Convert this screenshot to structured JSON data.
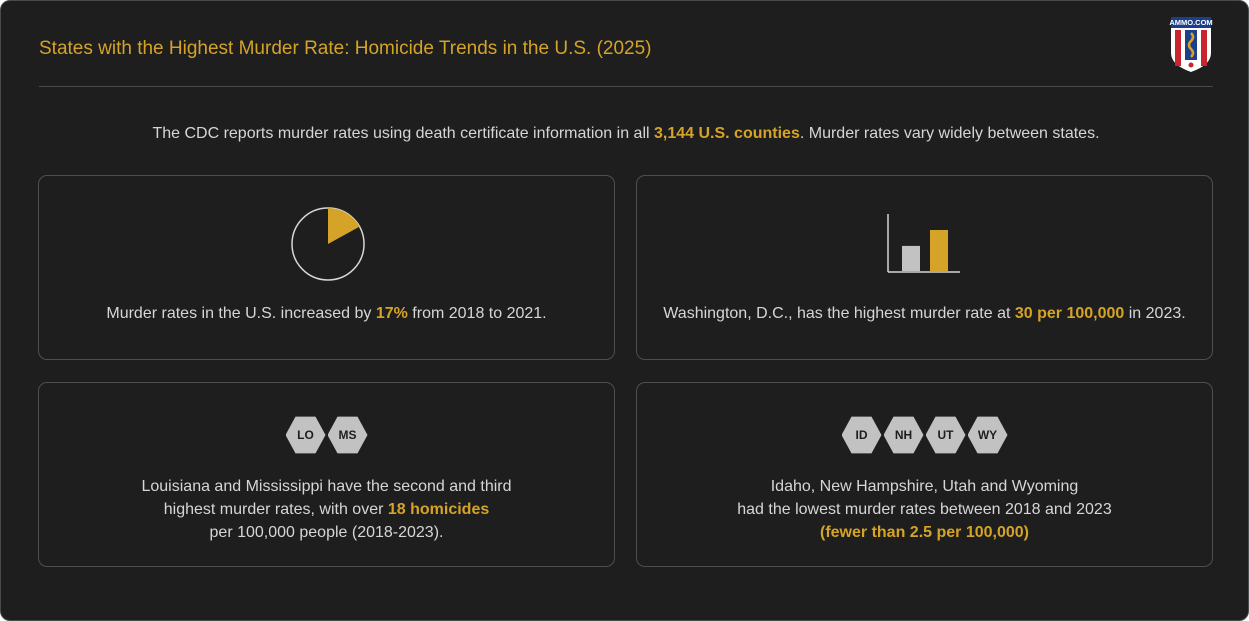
{
  "header": {
    "title": "States with the Highest Murder Rate: Homicide Trends in the U.S. (2025)",
    "logo_text": "AMMO.COM"
  },
  "intro": {
    "before": "The CDC reports murder rates using death certificate information in all ",
    "highlight": "3,144 U.S. counties",
    "after": ". Murder rates vary widely between states."
  },
  "cards": [
    {
      "icon": "pie-chart-icon",
      "pie_fraction": 0.17,
      "before": "Murder rates in the U.S. increased by ",
      "highlight": "17%",
      "after": " from 2018 to 2021."
    },
    {
      "icon": "bar-chart-icon",
      "bar_values": [
        0.44,
        0.72
      ],
      "before": "Washington, D.C., has the highest murder rate at ",
      "highlight": "30 per 100,000",
      "after": " in 2023."
    },
    {
      "icon": "state-badges",
      "badges": [
        "LO",
        "MS"
      ],
      "line1": "Louisiana and Mississippi have the second and third",
      "line2_before": "highest murder rates, with over ",
      "line2_highlight": "18 homicides",
      "line3": "per 100,000 people (2018-2023)."
    },
    {
      "icon": "state-badges",
      "badges": [
        "ID",
        "NH",
        "UT",
        "WY"
      ],
      "line1": "Idaho, New Hampshire, Utah and Wyoming",
      "line2": "had the lowest murder rates between 2018 and 2023",
      "line3_highlight": "(fewer than 2.5 per 100,000)"
    }
  ],
  "colors": {
    "background": "#1e1e1e",
    "accent": "#d4a327",
    "text": "#d6d6d6",
    "badge": "#c2c2c2",
    "border": "#4e4e4e"
  }
}
